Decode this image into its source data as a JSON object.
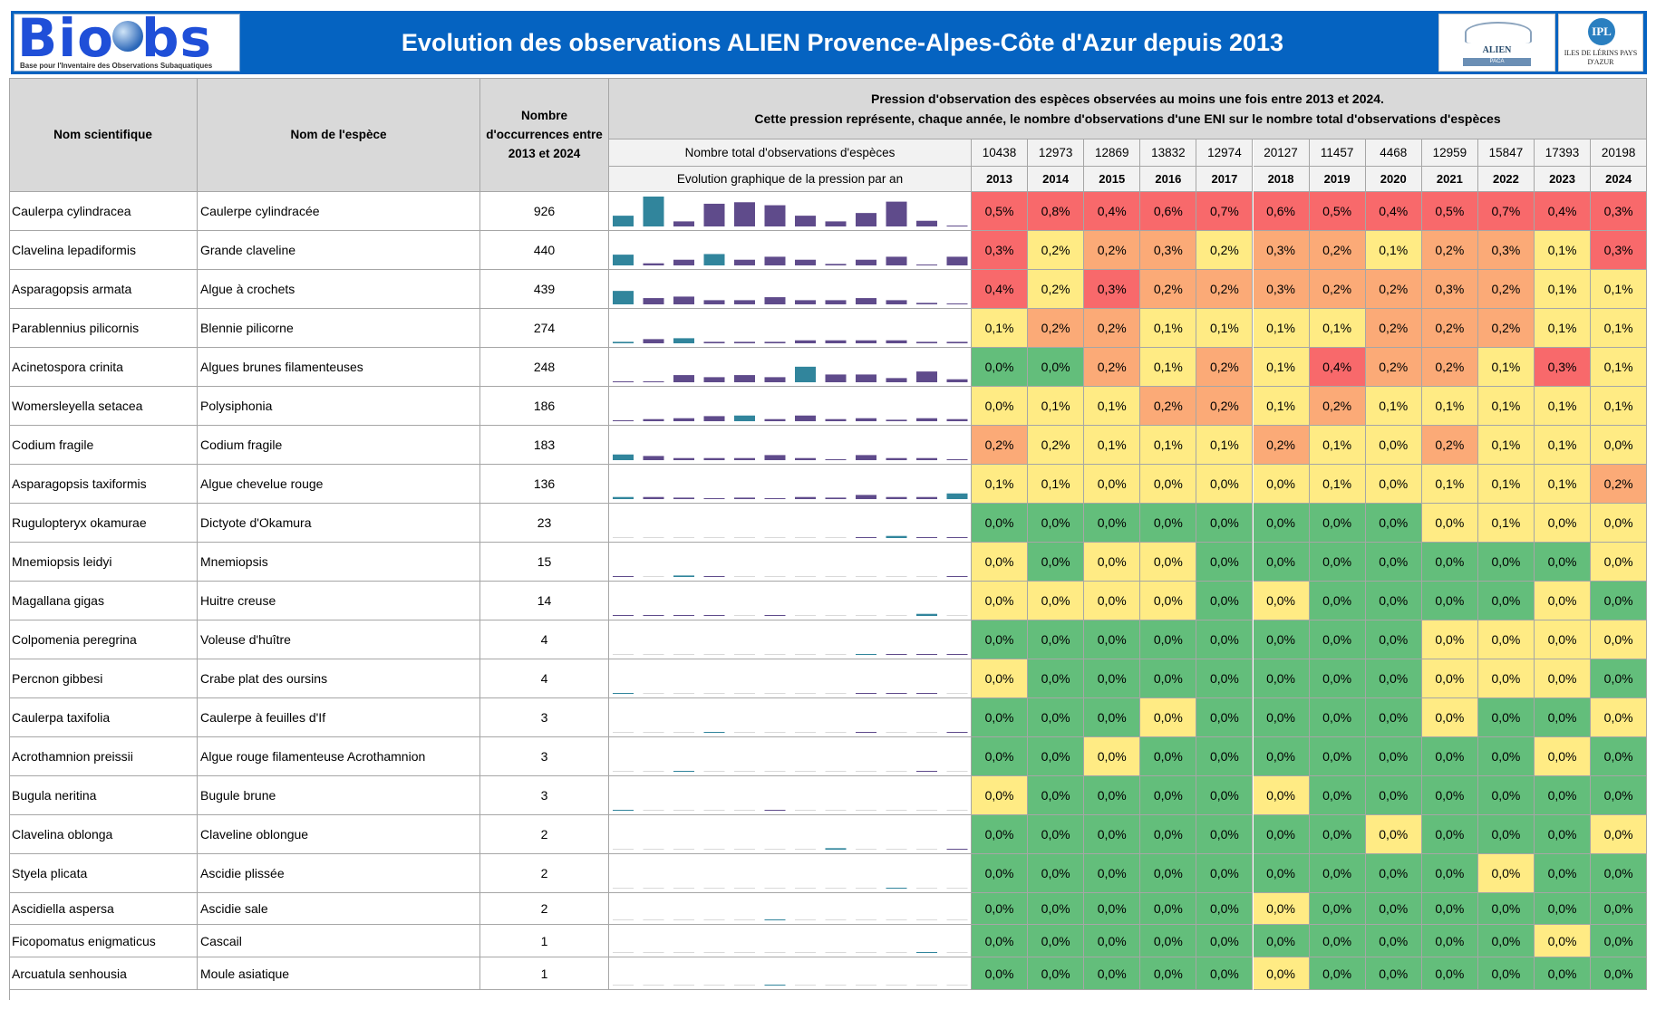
{
  "header": {
    "logo_text": "BioObs",
    "logo_tagline": "Base pour l'Inventaire des Observations Subaquatiques",
    "title": "Evolution des observations ALIEN Provence-Alpes-Côte d'Azur depuis 2013",
    "alien_logo_text": "ALIEN",
    "alien_logo_sub": "PACA",
    "ipl_logo_mark": "IPL",
    "ipl_logo_text": "ILES DE LÉRINS PAYS D'AZUR"
  },
  "table": {
    "col_scientific": "Nom scientifique",
    "col_species": "Nom de l'espèce",
    "col_occurrences": "Nombre d'occurrences entre 2013 et 2024",
    "pressure_title_line1": "Pression d'observation des espèces observées au moins une fois entre 2013 et 2024.",
    "pressure_title_line2": "Cette pression représente, chaque année, le nombre d'observations d'une ENI sur le nombre total d'observations d'espèces",
    "total_label": "Nombre total d'observations d'espèces",
    "graph_label": "Evolution graphique de la pression par an",
    "years": [
      "2013",
      "2014",
      "2015",
      "2016",
      "2017",
      "2018",
      "2019",
      "2020",
      "2021",
      "2022",
      "2023",
      "2024"
    ],
    "totals": [
      "10438",
      "12973",
      "12869",
      "13832",
      "12974",
      "20127",
      "11457",
      "4468",
      "12959",
      "15847",
      "17393",
      "20198"
    ],
    "colors": {
      "red": "#f8696b",
      "orange": "#fbaa77",
      "yellow": "#ffeb84",
      "green": "#63be7b",
      "bar_purple": "#5f4b8b",
      "bar_teal": "#31859c"
    },
    "rows": [
      {
        "scientific": "Caulerpa cylindracea",
        "species": "Caulerpe cylindracée",
        "occurrences": "926",
        "values": [
          "0,5%",
          "0,8%",
          "0,4%",
          "0,6%",
          "0,7%",
          "0,6%",
          "0,5%",
          "0,4%",
          "0,5%",
          "0,7%",
          "0,4%",
          "0,3%"
        ]
      },
      {
        "scientific": "Clavelina lepadiformis",
        "species": "Grande claveline",
        "occurrences": "440",
        "values": [
          "0,3%",
          "0,2%",
          "0,2%",
          "0,3%",
          "0,2%",
          "0,3%",
          "0,2%",
          "0,1%",
          "0,2%",
          "0,3%",
          "0,1%",
          "0,3%"
        ]
      },
      {
        "scientific": "Asparagopsis armata",
        "species": "Algue à crochets",
        "occurrences": "439",
        "values": [
          "0,4%",
          "0,2%",
          "0,3%",
          "0,2%",
          "0,2%",
          "0,3%",
          "0,2%",
          "0,2%",
          "0,3%",
          "0,2%",
          "0,1%",
          "0,1%"
        ]
      },
      {
        "scientific": "Parablennius pilicornis",
        "species": "Blennie pilicorne",
        "occurrences": "274",
        "values": [
          "0,1%",
          "0,2%",
          "0,2%",
          "0,1%",
          "0,1%",
          "0,1%",
          "0,1%",
          "0,2%",
          "0,2%",
          "0,2%",
          "0,1%",
          "0,1%"
        ]
      },
      {
        "scientific": "Acinetospora crinita",
        "species": "Algues brunes filamenteuses",
        "occurrences": "248",
        "values": [
          "0,0%",
          "0,0%",
          "0,2%",
          "0,1%",
          "0,2%",
          "0,1%",
          "0,4%",
          "0,2%",
          "0,2%",
          "0,1%",
          "0,3%",
          "0,1%"
        ]
      },
      {
        "scientific": "Womersleyella setacea",
        "species": "Polysiphonia",
        "occurrences": "186",
        "values": [
          "0,0%",
          "0,1%",
          "0,1%",
          "0,2%",
          "0,2%",
          "0,1%",
          "0,2%",
          "0,1%",
          "0,1%",
          "0,1%",
          "0,1%",
          "0,1%"
        ]
      },
      {
        "scientific": "Codium fragile",
        "species": "Codium fragile",
        "occurrences": "183",
        "values": [
          "0,2%",
          "0,2%",
          "0,1%",
          "0,1%",
          "0,1%",
          "0,2%",
          "0,1%",
          "0,0%",
          "0,2%",
          "0,1%",
          "0,1%",
          "0,0%"
        ]
      },
      {
        "scientific": "Asparagopsis taxiformis",
        "species": "Algue chevelue rouge",
        "occurrences": "136",
        "values": [
          "0,1%",
          "0,1%",
          "0,0%",
          "0,0%",
          "0,0%",
          "0,0%",
          "0,1%",
          "0,0%",
          "0,1%",
          "0,1%",
          "0,1%",
          "0,2%"
        ]
      },
      {
        "scientific": "Rugulopteryx okamurae",
        "species": "Dictyote d'Okamura",
        "occurrences": "23",
        "values": [
          "0,0%",
          "0,0%",
          "0,0%",
          "0,0%",
          "0,0%",
          "0,0%",
          "0,0%",
          "0,0%",
          "0,0%",
          "0,1%",
          "0,0%",
          "0,0%"
        ]
      },
      {
        "scientific": "Mnemiopsis leidyi",
        "species": "Mnemiopsis",
        "occurrences": "15",
        "values": [
          "0,0%",
          "0,0%",
          "0,0%",
          "0,0%",
          "0,0%",
          "0,0%",
          "0,0%",
          "0,0%",
          "0,0%",
          "0,0%",
          "0,0%",
          "0,0%"
        ]
      },
      {
        "scientific": "Magallana gigas",
        "species": "Huitre creuse",
        "occurrences": "14",
        "values": [
          "0,0%",
          "0,0%",
          "0,0%",
          "0,0%",
          "0,0%",
          "0,0%",
          "0,0%",
          "0,0%",
          "0,0%",
          "0,0%",
          "0,0%",
          "0,0%"
        ]
      },
      {
        "scientific": "Colpomenia peregrina",
        "species": "Voleuse d'huître",
        "occurrences": "4",
        "values": [
          "0,0%",
          "0,0%",
          "0,0%",
          "0,0%",
          "0,0%",
          "0,0%",
          "0,0%",
          "0,0%",
          "0,0%",
          "0,0%",
          "0,0%",
          "0,0%"
        ]
      },
      {
        "scientific": "Percnon gibbesi",
        "species": "Crabe plat des oursins",
        "occurrences": "4",
        "values": [
          "0,0%",
          "0,0%",
          "0,0%",
          "0,0%",
          "0,0%",
          "0,0%",
          "0,0%",
          "0,0%",
          "0,0%",
          "0,0%",
          "0,0%",
          "0,0%"
        ]
      },
      {
        "scientific": "Caulerpa taxifolia",
        "species": "Caulerpe à feuilles d'If",
        "occurrences": "3",
        "values": [
          "0,0%",
          "0,0%",
          "0,0%",
          "0,0%",
          "0,0%",
          "0,0%",
          "0,0%",
          "0,0%",
          "0,0%",
          "0,0%",
          "0,0%",
          "0,0%"
        ]
      },
      {
        "scientific": "Acrothamnion preissii",
        "species": "Algue rouge filamenteuse Acrothamnion",
        "occurrences": "3",
        "values": [
          "0,0%",
          "0,0%",
          "0,0%",
          "0,0%",
          "0,0%",
          "0,0%",
          "0,0%",
          "0,0%",
          "0,0%",
          "0,0%",
          "0,0%",
          "0,0%"
        ]
      },
      {
        "scientific": "Bugula neritina",
        "species": "Bugule brune",
        "occurrences": "3",
        "values": [
          "0,0%",
          "0,0%",
          "0,0%",
          "0,0%",
          "0,0%",
          "0,0%",
          "0,0%",
          "0,0%",
          "0,0%",
          "0,0%",
          "0,0%",
          "0,0%"
        ]
      },
      {
        "scientific": "Clavelina oblonga",
        "species": "Claveline oblongue",
        "occurrences": "2",
        "values": [
          "0,0%",
          "0,0%",
          "0,0%",
          "0,0%",
          "0,0%",
          "0,0%",
          "0,0%",
          "0,0%",
          "0,0%",
          "0,0%",
          "0,0%",
          "0,0%"
        ]
      },
      {
        "scientific": "Styela plicata",
        "species": "Ascidie plissée",
        "occurrences": "2",
        "values": [
          "0,0%",
          "0,0%",
          "0,0%",
          "0,0%",
          "0,0%",
          "0,0%",
          "0,0%",
          "0,0%",
          "0,0%",
          "0,0%",
          "0,0%",
          "0,0%"
        ]
      },
      {
        "scientific": "Ascidiella aspersa",
        "species": "Ascidie sale",
        "occurrences": "2",
        "values": [
          "0,0%",
          "0,0%",
          "0,0%",
          "0,0%",
          "0,0%",
          "0,0%",
          "0,0%",
          "0,0%",
          "0,0%",
          "0,0%",
          "0,0%",
          "0,0%"
        ]
      },
      {
        "scientific": "Ficopomatus enigmaticus",
        "species": "Cascail",
        "occurrences": "1",
        "values": [
          "0,0%",
          "0,0%",
          "0,0%",
          "0,0%",
          "0,0%",
          "0,0%",
          "0,0%",
          "0,0%",
          "0,0%",
          "0,0%",
          "0,0%",
          "0,0%"
        ]
      },
      {
        "scientific": "Arcuatula senhousia",
        "species": "Moule asiatique",
        "occurrences": "1",
        "values": [
          "0,0%",
          "0,0%",
          "0,0%",
          "0,0%",
          "0,0%",
          "0,0%",
          "0,0%",
          "0,0%",
          "0,0%",
          "0,0%",
          "0,0%",
          "0,0%"
        ]
      }
    ],
    "cell_colors": [
      [
        "red",
        "red",
        "red",
        "red",
        "red",
        "red",
        "red",
        "red",
        "red",
        "red",
        "red",
        "red"
      ],
      [
        "red",
        "yellow",
        "orange",
        "orange",
        "yellow",
        "orange",
        "orange",
        "yellow",
        "orange",
        "orange",
        "yellow",
        "red"
      ],
      [
        "red",
        "yellow",
        "red",
        "orange",
        "orange",
        "orange",
        "orange",
        "orange",
        "orange",
        "orange",
        "yellow",
        "yellow"
      ],
      [
        "yellow",
        "orange",
        "orange",
        "yellow",
        "yellow",
        "yellow",
        "yellow",
        "orange",
        "orange",
        "orange",
        "yellow",
        "yellow"
      ],
      [
        "green",
        "green",
        "orange",
        "yellow",
        "orange",
        "yellow",
        "red",
        "orange",
        "orange",
        "yellow",
        "red",
        "yellow"
      ],
      [
        "yellow",
        "yellow",
        "yellow",
        "orange",
        "orange",
        "yellow",
        "orange",
        "yellow",
        "yellow",
        "yellow",
        "yellow",
        "yellow"
      ],
      [
        "orange",
        "yellow",
        "yellow",
        "yellow",
        "yellow",
        "orange",
        "yellow",
        "yellow",
        "orange",
        "yellow",
        "yellow",
        "yellow"
      ],
      [
        "yellow",
        "yellow",
        "yellow",
        "yellow",
        "yellow",
        "yellow",
        "yellow",
        "yellow",
        "yellow",
        "yellow",
        "yellow",
        "orange"
      ],
      [
        "green",
        "green",
        "green",
        "green",
        "green",
        "green",
        "green",
        "green",
        "yellow",
        "yellow",
        "yellow",
        "yellow"
      ],
      [
        "yellow",
        "green",
        "yellow",
        "yellow",
        "green",
        "green",
        "green",
        "green",
        "green",
        "green",
        "green",
        "yellow"
      ],
      [
        "yellow",
        "yellow",
        "yellow",
        "yellow",
        "green",
        "yellow",
        "green",
        "green",
        "green",
        "green",
        "yellow",
        "green"
      ],
      [
        "green",
        "green",
        "green",
        "green",
        "green",
        "green",
        "green",
        "green",
        "yellow",
        "yellow",
        "yellow",
        "yellow"
      ],
      [
        "yellow",
        "green",
        "green",
        "green",
        "green",
        "green",
        "green",
        "green",
        "yellow",
        "yellow",
        "yellow",
        "green"
      ],
      [
        "green",
        "green",
        "green",
        "yellow",
        "green",
        "green",
        "green",
        "green",
        "yellow",
        "green",
        "green",
        "yellow"
      ],
      [
        "green",
        "green",
        "yellow",
        "green",
        "green",
        "green",
        "green",
        "green",
        "green",
        "green",
        "yellow",
        "green"
      ],
      [
        "yellow",
        "green",
        "green",
        "green",
        "green",
        "yellow",
        "green",
        "green",
        "green",
        "green",
        "green",
        "green"
      ],
      [
        "green",
        "green",
        "green",
        "green",
        "green",
        "green",
        "green",
        "yellow",
        "green",
        "green",
        "green",
        "yellow"
      ],
      [
        "green",
        "green",
        "green",
        "green",
        "green",
        "green",
        "green",
        "green",
        "green",
        "yellow",
        "green",
        "green"
      ],
      [
        "green",
        "green",
        "green",
        "green",
        "green",
        "yellow",
        "green",
        "green",
        "green",
        "green",
        "green",
        "green"
      ],
      [
        "green",
        "green",
        "green",
        "green",
        "green",
        "green",
        "green",
        "green",
        "green",
        "green",
        "yellow",
        "green"
      ],
      [
        "green",
        "green",
        "green",
        "green",
        "green",
        "yellow",
        "green",
        "green",
        "green",
        "green",
        "green",
        "green"
      ]
    ],
    "sparklines": [
      [
        0.36,
        1.0,
        0.17,
        0.76,
        0.81,
        0.71,
        0.36,
        0.17,
        0.45,
        0.83,
        0.19,
        0.02
      ],
      [
        0.36,
        0.07,
        0.19,
        0.38,
        0.19,
        0.29,
        0.19,
        0.05,
        0.19,
        0.29,
        0.02,
        0.29
      ],
      [
        0.45,
        0.21,
        0.26,
        0.14,
        0.14,
        0.24,
        0.14,
        0.14,
        0.21,
        0.14,
        0.05,
        0.02
      ],
      [
        0.05,
        0.14,
        0.17,
        0.05,
        0.05,
        0.05,
        0.1,
        0.1,
        0.1,
        0.1,
        0.05,
        0.05
      ],
      [
        0.02,
        0.02,
        0.24,
        0.17,
        0.24,
        0.17,
        0.52,
        0.26,
        0.26,
        0.14,
        0.36,
        0.1
      ],
      [
        0.02,
        0.07,
        0.1,
        0.17,
        0.19,
        0.07,
        0.19,
        0.07,
        0.1,
        0.05,
        0.1,
        0.07
      ],
      [
        0.19,
        0.14,
        0.07,
        0.07,
        0.07,
        0.17,
        0.07,
        0.02,
        0.17,
        0.07,
        0.07,
        0.02
      ],
      [
        0.07,
        0.07,
        0.05,
        0.02,
        0.05,
        0.02,
        0.07,
        0.05,
        0.14,
        0.07,
        0.07,
        0.19
      ],
      [
        0,
        0,
        0,
        0,
        0,
        0,
        0,
        0,
        0.02,
        0.07,
        0.02,
        0.02
      ],
      [
        0.02,
        0,
        0.05,
        0.02,
        0,
        0,
        0,
        0,
        0,
        0,
        0,
        0.02
      ],
      [
        0.02,
        0.02,
        0.02,
        0.02,
        0,
        0.02,
        0,
        0,
        0,
        0,
        0.07,
        0
      ],
      [
        0,
        0,
        0,
        0,
        0,
        0,
        0,
        0,
        0.02,
        0.02,
        0.02,
        0.02
      ],
      [
        0.02,
        0,
        0,
        0,
        0,
        0,
        0,
        0,
        0.02,
        0.02,
        0.02,
        0
      ],
      [
        0,
        0,
        0,
        0.02,
        0,
        0,
        0,
        0,
        0.02,
        0,
        0,
        0.02
      ],
      [
        0,
        0,
        0.02,
        0,
        0,
        0,
        0,
        0,
        0,
        0,
        0.02,
        0
      ],
      [
        0.02,
        0,
        0,
        0,
        0,
        0.02,
        0,
        0,
        0,
        0,
        0,
        0
      ],
      [
        0,
        0,
        0,
        0,
        0,
        0,
        0,
        0.05,
        0,
        0,
        0,
        0.02
      ],
      [
        0,
        0,
        0,
        0,
        0,
        0,
        0,
        0,
        0,
        0.02,
        0,
        0
      ],
      [
        0,
        0,
        0,
        0,
        0,
        0.02,
        0,
        0,
        0,
        0,
        0,
        0
      ],
      [
        0,
        0,
        0,
        0,
        0,
        0,
        0,
        0,
        0,
        0,
        0.02,
        0
      ],
      [
        0,
        0,
        0,
        0,
        0,
        0.02,
        0,
        0,
        0,
        0,
        0,
        0
      ]
    ],
    "sparkline_teal_max": [
      1,
      0,
      0,
      0,
      0,
      0,
      0,
      0,
      0,
      0,
      0,
      0
    ]
  }
}
